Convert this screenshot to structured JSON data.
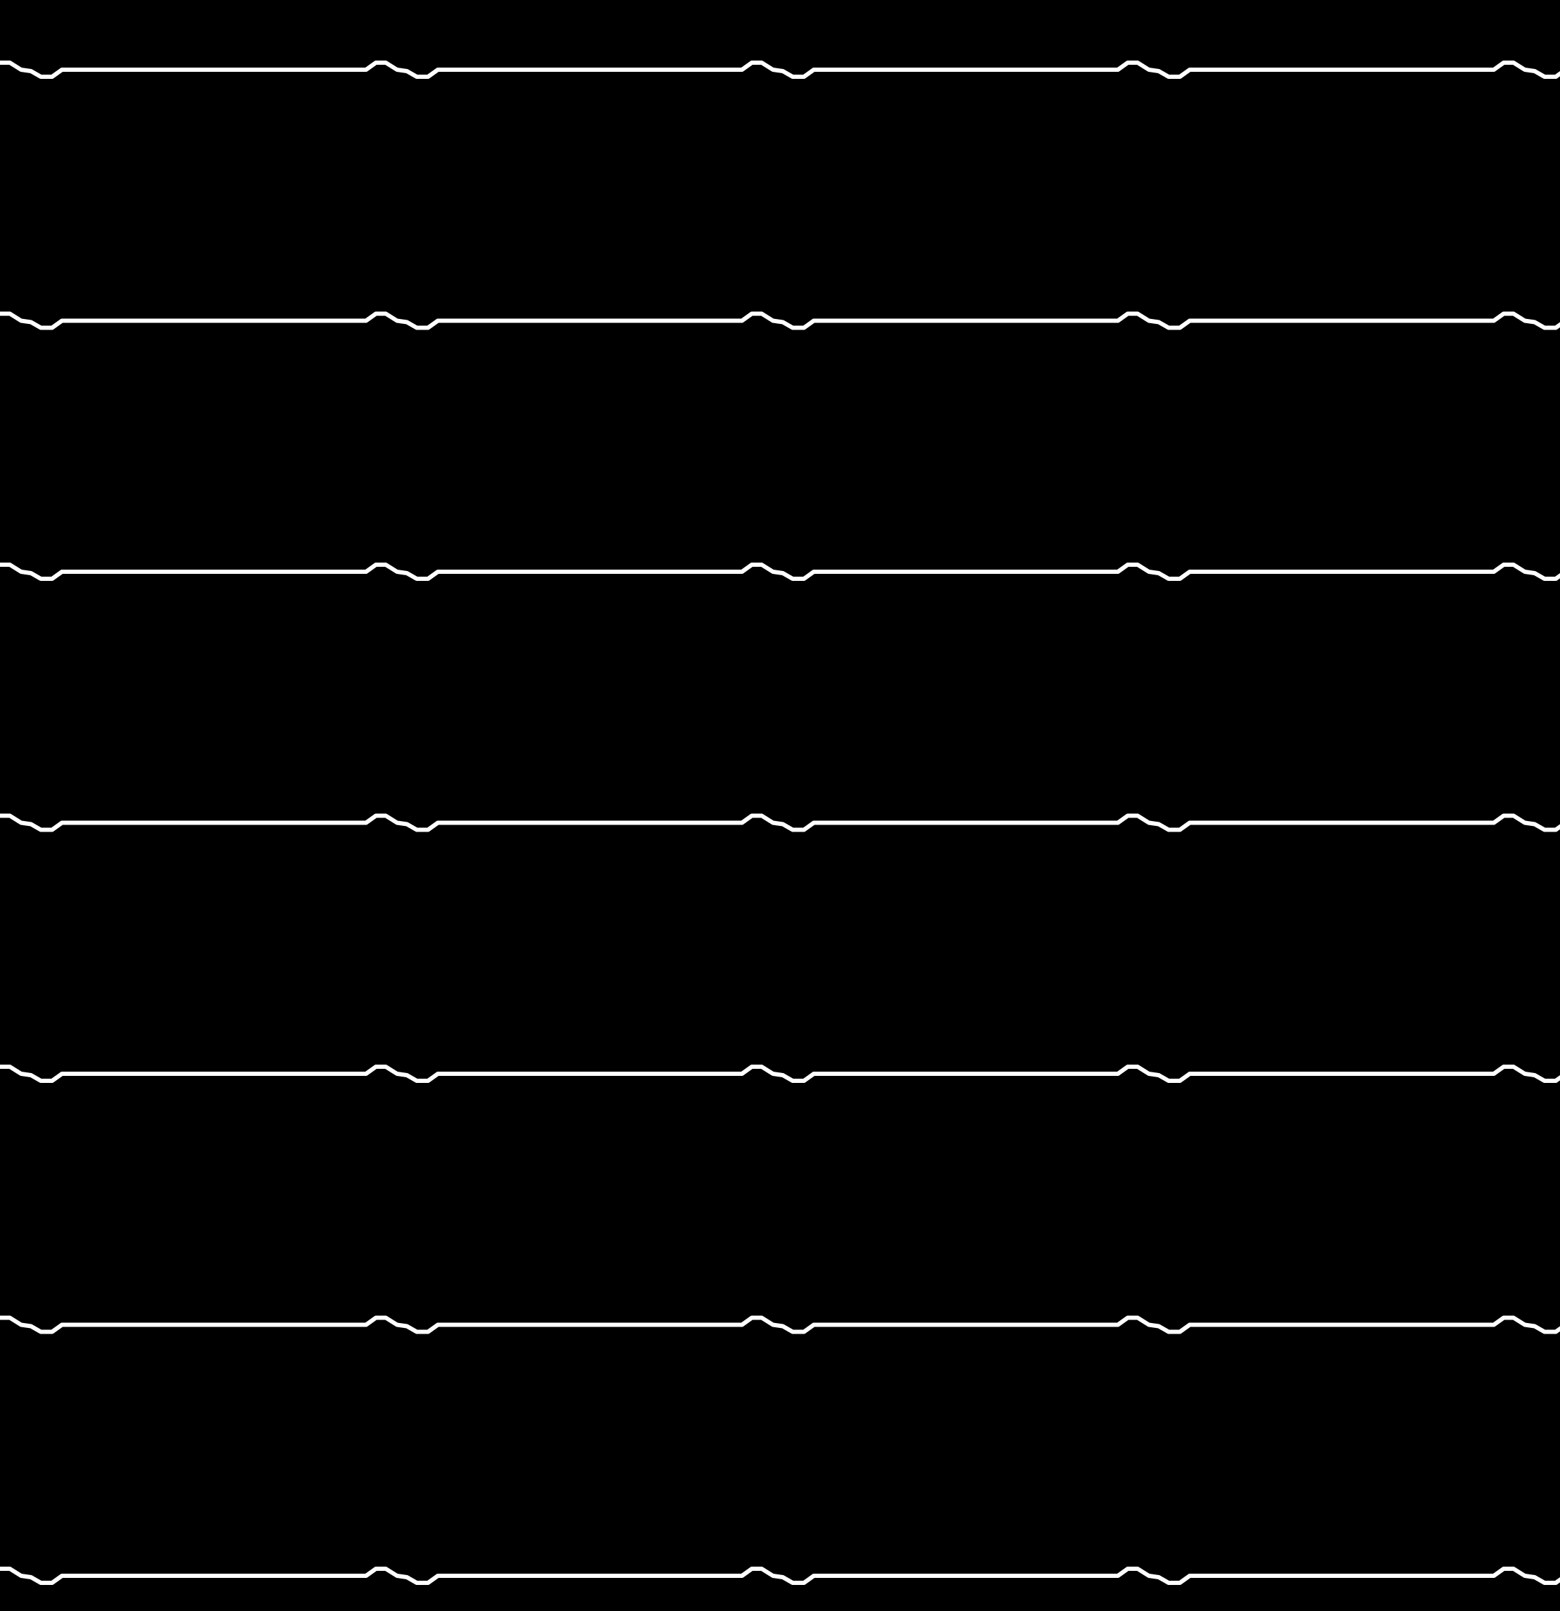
{
  "pattern": {
    "background_color": "#000000",
    "line_color": "#ffffff",
    "row_count": 7,
    "repeats_per_row": 4
  }
}
